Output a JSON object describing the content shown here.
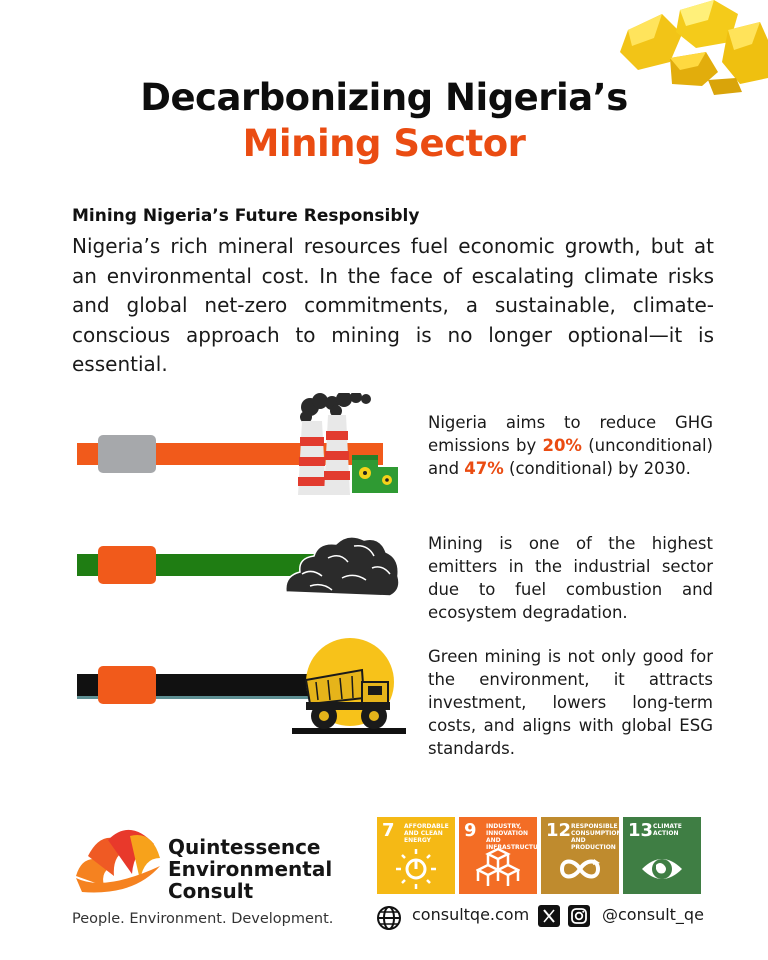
{
  "header": {
    "title_line1": "Decarbonizing Nigeria’s",
    "title_line2": "Mining Sector"
  },
  "intro": {
    "heading": "Mining Nigeria’s Future Responsibly",
    "body": "Nigeria’s rich mineral resources fuel economic growth, but at an environmental cost. In the face of escalating climate risks and global net-zero commitments, a sustainable, climate-conscious approach to mining is no longer optional—it is essential."
  },
  "points": [
    {
      "pre": "Nigeria aims to reduce GHG emissions by ",
      "pct1": "20%",
      "mid": " (unconditional) and ",
      "pct2": "47%",
      "post": " (conditional) by 2030.",
      "bar_color": "#f15a1b",
      "handle_color": "#a6a8ab"
    },
    {
      "text": "Mining is one of the highest emitters in the industrial sector due to fuel combustion and ecosystem degradation.",
      "bar_color": "#1f7d13",
      "handle_color": "#f15a1b"
    },
    {
      "text": "Green mining is not only good for the environment, it attracts investment, lowers long-term costs, and aligns with global ESG standards.",
      "bar_color": "#111111",
      "handle_color": "#f15a1b"
    }
  ],
  "footer": {
    "company_line1": "Quintessence",
    "company_line2": "Environmental",
    "company_line3": "Consult",
    "tagline": "People. Environment. Development.",
    "website": "consultqe.com",
    "social_handle": "@consult_qe",
    "sdgs": [
      {
        "number": "7",
        "label": "AFFORDABLE AND CLEAN ENERGY",
        "color": "#f5b915",
        "icon": "sun-power-icon"
      },
      {
        "number": "9",
        "label": "INDUSTRY, INNOVATION AND INFRASTRUCTURE",
        "color": "#f36d25",
        "icon": "cubes-icon"
      },
      {
        "number": "12",
        "label": "RESPONSIBLE CONSUMPTION AND PRODUCTION",
        "color": "#bf8b2e",
        "icon": "infinity-icon"
      },
      {
        "number": "13",
        "label": "CLIMATE ACTION",
        "color": "#3f7e44",
        "icon": "eye-globe-icon"
      }
    ]
  }
}
